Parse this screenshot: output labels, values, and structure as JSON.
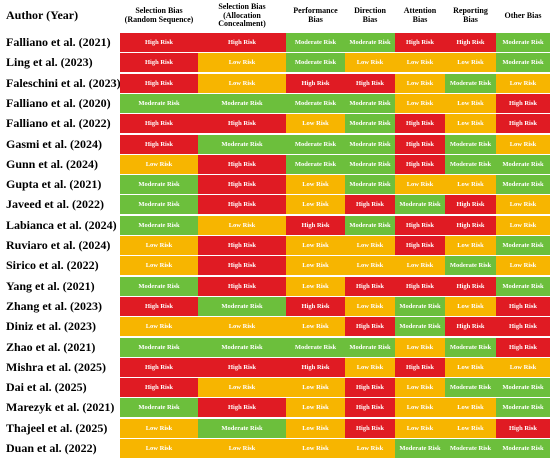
{
  "table": {
    "author_header": "Author (Year)",
    "columns": [
      "Selection Bias\n(Random Sequence)",
      "Selection Bias\n(Allocation\nConcealment)",
      "Performance\nBias",
      "Direction\nBias",
      "Attention\nBias",
      "Reporting\nBias",
      "Other Bias"
    ],
    "labels": {
      "high": "High Risk",
      "mod": "Moderate Risk",
      "low": "Low Risk"
    },
    "colors": {
      "high": "#e01b23",
      "mod": "#6cbf3c",
      "low": "#f7b500"
    },
    "rows": [
      {
        "author": "Falliano et al. (2021)",
        "ratings": [
          "high",
          "high",
          "mod",
          "mod",
          "high",
          "high",
          "mod"
        ]
      },
      {
        "author": "Ling et al. (2023)",
        "ratings": [
          "high",
          "low",
          "mod",
          "low",
          "low",
          "low",
          "mod"
        ]
      },
      {
        "author": "Faleschini et al. (2023)",
        "ratings": [
          "high",
          "low",
          "high",
          "high",
          "low",
          "mod",
          "low"
        ]
      },
      {
        "author": "Falliano et al. (2020)",
        "ratings": [
          "mod",
          "mod",
          "mod",
          "mod",
          "low",
          "low",
          "high"
        ]
      },
      {
        "author": "Falliano et al. (2022)",
        "ratings": [
          "high",
          "high",
          "low",
          "mod",
          "high",
          "low",
          "high"
        ]
      },
      {
        "author": "Gasmi et al. (2024)",
        "ratings": [
          "high",
          "mod",
          "mod",
          "mod",
          "high",
          "mod",
          "low"
        ]
      },
      {
        "author": "Gunn et al. (2024)",
        "ratings": [
          "low",
          "high",
          "mod",
          "mod",
          "high",
          "mod",
          "mod"
        ]
      },
      {
        "author": "Gupta et al. (2021)",
        "ratings": [
          "mod",
          "high",
          "low",
          "mod",
          "low",
          "low",
          "mod"
        ]
      },
      {
        "author": "Javeed et al. (2022)",
        "ratings": [
          "mod",
          "high",
          "low",
          "high",
          "mod",
          "high",
          "low"
        ]
      },
      {
        "author": "Labianca et al. (2024)",
        "ratings": [
          "mod",
          "low",
          "high",
          "mod",
          "high",
          "high",
          "low"
        ]
      },
      {
        "author": "Ruviaro et al. (2024)",
        "ratings": [
          "low",
          "high",
          "low",
          "low",
          "high",
          "low",
          "mod"
        ]
      },
      {
        "author": "Sirico et al. (2022)",
        "ratings": [
          "low",
          "high",
          "low",
          "low",
          "low",
          "mod",
          "low"
        ]
      },
      {
        "author": "Yang et al. (2021)",
        "ratings": [
          "mod",
          "high",
          "low",
          "high",
          "high",
          "high",
          "mod"
        ]
      },
      {
        "author": "Zhang et al. (2023)",
        "ratings": [
          "high",
          "mod",
          "high",
          "low",
          "mod",
          "low",
          "high"
        ]
      },
      {
        "author": "Diniz et al. (2023)",
        "ratings": [
          "low",
          "low",
          "low",
          "high",
          "mod",
          "high",
          "high"
        ]
      },
      {
        "author": "Zhao et al. (2021)",
        "ratings": [
          "mod",
          "mod",
          "mod",
          "mod",
          "low",
          "mod",
          "high"
        ]
      },
      {
        "author": "Mishra et al. (2025)",
        "ratings": [
          "high",
          "high",
          "high",
          "low",
          "high",
          "low",
          "low"
        ]
      },
      {
        "author": "Dai et al. (2025)",
        "ratings": [
          "high",
          "low",
          "low",
          "high",
          "low",
          "mod",
          "mod"
        ]
      },
      {
        "author": "Marezyk et al. (2021)",
        "ratings": [
          "mod",
          "high",
          "low",
          "high",
          "low",
          "low",
          "mod"
        ]
      },
      {
        "author": "Thajeel et al. (2025)",
        "ratings": [
          "low",
          "mod",
          "low",
          "high",
          "low",
          "low",
          "high"
        ]
      },
      {
        "author": "Duan et al. (2022)",
        "ratings": [
          "low",
          "low",
          "low",
          "low",
          "mod",
          "mod",
          "mod"
        ]
      }
    ]
  }
}
